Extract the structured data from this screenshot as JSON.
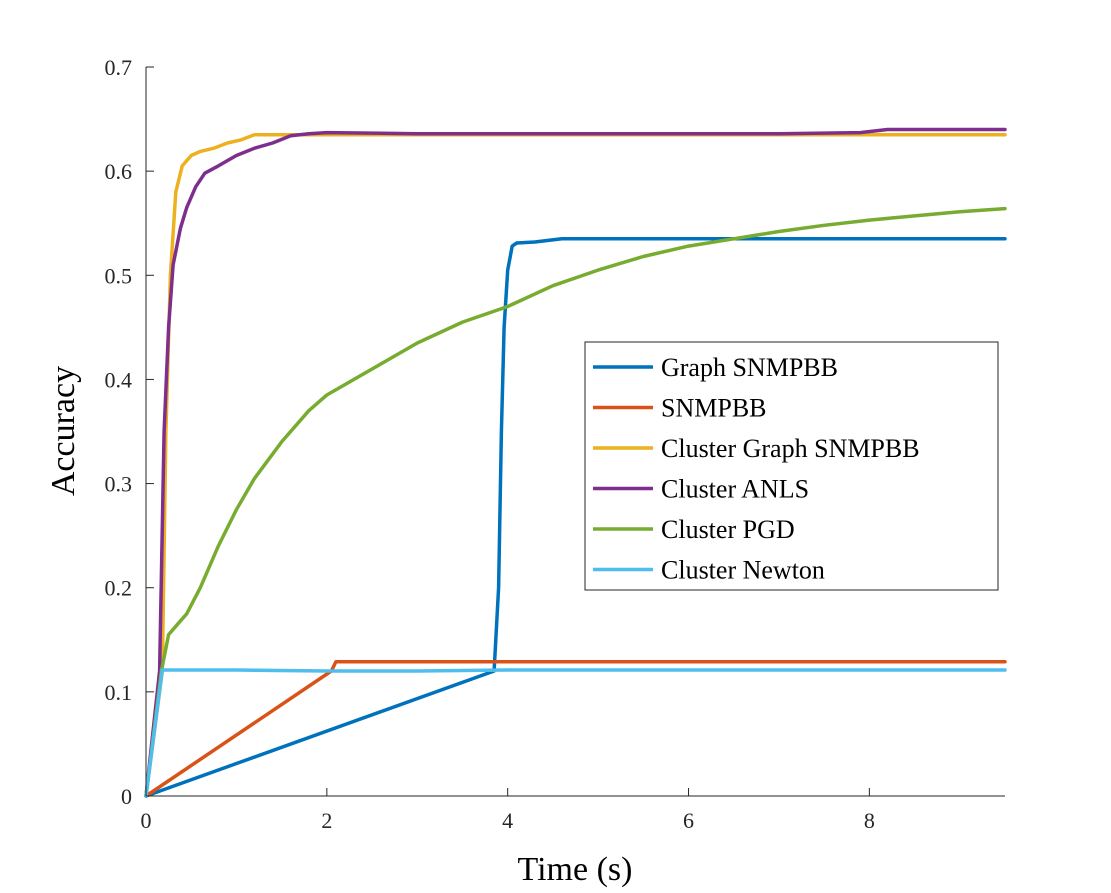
{
  "chart_data": {
    "type": "line",
    "title": "",
    "xlabel": "Time (s)",
    "ylabel": "Accuracy",
    "xlim": [
      0,
      9.5
    ],
    "ylim": [
      0,
      0.7
    ],
    "xticks": [
      0,
      2,
      4,
      6,
      8
    ],
    "yticks": [
      0,
      0.1,
      0.2,
      0.3,
      0.4,
      0.5,
      0.6,
      0.7
    ],
    "xtick_labels": [
      "0",
      "2",
      "4",
      "6",
      "8"
    ],
    "ytick_labels": [
      "0",
      "0.1",
      "0.2",
      "0.3",
      "0.4",
      "0.5",
      "0.6",
      "0.7"
    ],
    "grid": false,
    "legend_position": "center-right",
    "series": [
      {
        "name": "Graph SNMPBB",
        "color": "#0072BD",
        "x": [
          0,
          3.85,
          3.9,
          3.93,
          3.96,
          4.0,
          4.05,
          4.1,
          4.3,
          4.6,
          5.0,
          9.5
        ],
        "y": [
          0,
          0.12,
          0.2,
          0.35,
          0.45,
          0.505,
          0.528,
          0.531,
          0.532,
          0.535,
          0.535,
          0.535
        ]
      },
      {
        "name": "SNMPBB",
        "color": "#D95319",
        "x": [
          0,
          2.05,
          2.1,
          9.5
        ],
        "y": [
          0,
          0.12,
          0.129,
          0.129
        ]
      },
      {
        "name": "Cluster Graph SNMPBB",
        "color": "#EDB120",
        "x": [
          0,
          0.18,
          0.22,
          0.27,
          0.33,
          0.4,
          0.5,
          0.6,
          0.75,
          0.9,
          1.05,
          1.2,
          1.5,
          9.5
        ],
        "y": [
          0,
          0.12,
          0.35,
          0.5,
          0.58,
          0.605,
          0.615,
          0.619,
          0.622,
          0.627,
          0.63,
          0.635,
          0.635,
          0.635
        ]
      },
      {
        "name": "Cluster ANLS",
        "color": "#7E2F8E",
        "x": [
          0,
          0.15,
          0.2,
          0.25,
          0.3,
          0.38,
          0.45,
          0.55,
          0.65,
          0.8,
          1.0,
          1.2,
          1.4,
          1.6,
          1.8,
          2.0,
          3.0,
          5.0,
          7.0,
          7.9,
          8.2,
          8.5,
          9.5
        ],
        "y": [
          0,
          0.12,
          0.35,
          0.45,
          0.51,
          0.545,
          0.565,
          0.585,
          0.598,
          0.605,
          0.615,
          0.622,
          0.627,
          0.634,
          0.636,
          0.637,
          0.636,
          0.636,
          0.636,
          0.637,
          0.64,
          0.64,
          0.64
        ]
      },
      {
        "name": "Cluster PGD",
        "color": "#77AC30",
        "x": [
          0,
          0.17,
          0.25,
          0.35,
          0.45,
          0.6,
          0.8,
          1.0,
          1.2,
          1.5,
          1.8,
          2.0,
          2.2,
          2.5,
          3.0,
          3.5,
          4.0,
          4.5,
          5.0,
          5.5,
          6.0,
          6.5,
          7.0,
          7.5,
          8.0,
          8.5,
          9.0,
          9.5
        ],
        "y": [
          0,
          0.12,
          0.155,
          0.165,
          0.175,
          0.2,
          0.24,
          0.275,
          0.305,
          0.34,
          0.37,
          0.385,
          0.395,
          0.41,
          0.435,
          0.455,
          0.47,
          0.49,
          0.505,
          0.518,
          0.528,
          0.535,
          0.542,
          0.548,
          0.553,
          0.557,
          0.561,
          0.564
        ]
      },
      {
        "name": "Cluster Newton",
        "color": "#4DBEEE",
        "x": [
          0,
          0.18,
          0.25,
          1.0,
          2.0,
          3.0,
          4.0,
          5.0,
          9.5
        ],
        "y": [
          0,
          0.121,
          0.121,
          0.121,
          0.12,
          0.12,
          0.121,
          0.121,
          0.121
        ]
      }
    ]
  }
}
